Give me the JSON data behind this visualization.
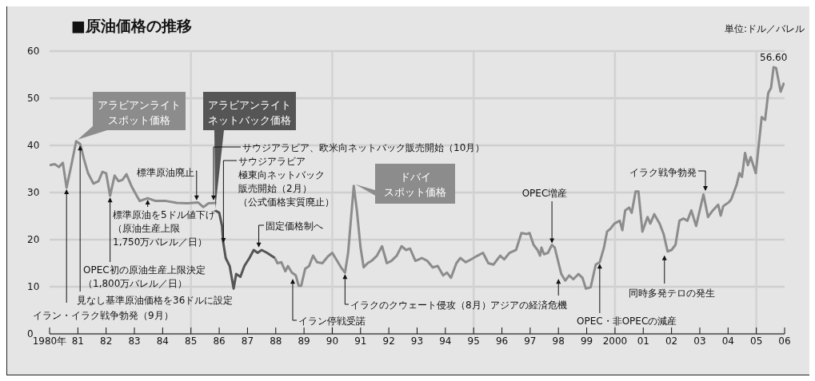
{
  "chart_data": {
    "type": "line",
    "title": "■原油価格の推移",
    "ylabel": "単位:ドル／バレル",
    "xlim": [
      1980,
      2006
    ],
    "xticks": [
      {
        "value": 1980,
        "label": "1980年"
      },
      {
        "value": 1981,
        "label": "81"
      },
      {
        "value": 1982,
        "label": "82"
      },
      {
        "value": 1983,
        "label": "83"
      },
      {
        "value": 1984,
        "label": "84"
      },
      {
        "value": 1985,
        "label": "85"
      },
      {
        "value": 1986,
        "label": "86"
      },
      {
        "value": 1987,
        "label": "87"
      },
      {
        "value": 1988,
        "label": "88"
      },
      {
        "value": 1989,
        "label": "89"
      },
      {
        "value": 1990,
        "label": "90"
      },
      {
        "value": 1991,
        "label": "91"
      },
      {
        "value": 1992,
        "label": "92"
      },
      {
        "value": 1993,
        "label": "93"
      },
      {
        "value": 1994,
        "label": "94"
      },
      {
        "value": 1995,
        "label": "95"
      },
      {
        "value": 1996,
        "label": "96"
      },
      {
        "value": 1997,
        "label": "97"
      },
      {
        "value": 1998,
        "label": "98"
      },
      {
        "value": 1999,
        "label": "99"
      },
      2000,
      {
        "value": 2001,
        "label": "01"
      },
      {
        "value": 2002,
        "label": "02"
      },
      {
        "value": 2003,
        "label": "03"
      },
      {
        "value": 2004,
        "label": "04"
      },
      {
        "value": 2005,
        "label": "05"
      },
      {
        "value": 2006,
        "label": "06"
      }
    ],
    "ylim": [
      0,
      60
    ],
    "yticks": [
      0,
      10,
      20,
      30,
      40,
      50,
      60
    ],
    "grid": "y",
    "marker": "none",
    "line_style": "solid",
    "legend": false,
    "ref_lines": [
      {
        "axis": "x",
        "value": 1985,
        "color": "#d2d2d2"
      },
      {
        "axis": "x",
        "value": 1990,
        "color": "#d2d2d2"
      },
      {
        "axis": "x",
        "value": 1995,
        "color": "#d2d2d2"
      },
      {
        "axis": "x",
        "value": 2000,
        "color": "#d2d2d2"
      },
      {
        "axis": "x",
        "value": 2005,
        "color": "#d2d2d2"
      }
    ],
    "series": [
      {
        "name": "アラビアンライトスポット価格",
        "color": "#8c8c8c",
        "x": [
          1980.0,
          1980.19,
          1980.33,
          1980.47,
          1980.6,
          1980.77,
          1980.94,
          1981.08,
          1981.22,
          1981.36,
          1981.55,
          1981.73,
          1981.87,
          1982.0,
          1982.14,
          1982.3,
          1982.44,
          1982.58,
          1982.72,
          1982.9,
          1983.1,
          1983.19,
          1983.47,
          1983.75,
          1984.12,
          1984.5,
          1984.87,
          1985.25,
          1985.44,
          1985.62,
          1985.9
        ],
        "values": [
          35.8,
          36.0,
          35.4,
          36.3,
          31.0,
          35.8,
          40.9,
          40.3,
          37.0,
          34.1,
          31.9,
          32.4,
          34.4,
          34.1,
          29.3,
          33.6,
          32.4,
          32.7,
          33.9,
          31.3,
          29.1,
          28.2,
          28.8,
          28.2,
          28.2,
          27.8,
          27.7,
          27.9,
          26.9,
          27.7,
          27.8
        ]
      },
      {
        "name": "アラビアンライトネットバック価格",
        "color": "#555555",
        "x": [
          1985.86,
          1986.0,
          1986.1,
          1986.14,
          1986.23,
          1986.37,
          1986.51,
          1986.6,
          1986.75,
          1986.89,
          1987.07,
          1987.22,
          1987.36,
          1987.5,
          1987.69,
          1987.97
        ],
        "values": [
          26.2,
          25.7,
          22.9,
          19.5,
          16.1,
          14.4,
          9.6,
          12.7,
          12.1,
          14.4,
          16.1,
          17.8,
          17.2,
          17.8,
          17.2,
          16.1
        ]
      },
      {
        "name": "ドバイスポット価格",
        "color": "#8c8c8c",
        "x": [
          1987.97,
          1988.06,
          1988.2,
          1988.34,
          1988.43,
          1988.57,
          1988.71,
          1988.81,
          1988.9,
          1989.04,
          1989.18,
          1989.32,
          1989.46,
          1989.65,
          1989.84,
          1990.0,
          1990.17,
          1990.31,
          1990.45,
          1990.56,
          1990.64,
          1990.76,
          1990.87,
          1991.0,
          1991.11,
          1991.25,
          1991.39,
          1991.58,
          1991.76,
          1991.93,
          1992.09,
          1992.28,
          1992.45,
          1992.61,
          1992.75,
          1992.94,
          1993.17,
          1993.36,
          1993.55,
          1993.73,
          1993.92,
          1994.06,
          1994.2,
          1994.39,
          1994.53,
          1994.72,
          1994.91,
          1995.14,
          1995.33,
          1995.52,
          1995.7,
          1995.94,
          1996.08,
          1996.27,
          1996.5,
          1996.69,
          1996.88,
          1996.98,
          1997.12,
          1997.26,
          1997.35,
          1997.4,
          1997.49,
          1997.63,
          1997.77,
          1997.87,
          1997.96,
          1998.1,
          1998.24,
          1998.38,
          1998.53,
          1998.71,
          1998.85,
          1998.97,
          1999.14,
          1999.32,
          1999.46,
          1999.61,
          1999.72,
          1999.84,
          1999.98,
          2000.17,
          2000.26,
          2000.36,
          2000.5,
          2000.59,
          2000.73,
          2000.83,
          2000.97,
          2001.15,
          2001.25,
          2001.39,
          2001.58,
          2001.72,
          2001.86,
          2002.0,
          2002.14,
          2002.28,
          2002.42,
          2002.56,
          2002.7,
          2002.87,
          2003.13,
          2003.29,
          2003.46,
          2003.65,
          2003.74,
          2003.83,
          2004.02,
          2004.11,
          2004.3,
          2004.4,
          2004.49,
          2004.6,
          2004.7,
          2004.8,
          2004.98,
          2005.07,
          2005.19,
          2005.31,
          2005.42,
          2005.52,
          2005.61,
          2005.7,
          2005.86,
          2005.98
        ],
        "values": [
          16.1,
          15.0,
          15.2,
          13.3,
          14.4,
          13.0,
          12.4,
          10.2,
          10.2,
          13.8,
          14.4,
          16.6,
          15.2,
          15.0,
          16.4,
          17.2,
          15.5,
          14.1,
          13.0,
          17.2,
          22.9,
          31.4,
          26.2,
          18.3,
          14.1,
          15.0,
          15.5,
          16.6,
          18.6,
          15.0,
          15.5,
          16.6,
          18.6,
          17.8,
          18.1,
          15.5,
          16.1,
          15.5,
          14.1,
          14.4,
          12.4,
          13.0,
          11.9,
          15.0,
          16.1,
          15.2,
          15.8,
          16.6,
          17.2,
          15.0,
          14.7,
          16.6,
          15.8,
          17.2,
          17.8,
          21.4,
          21.2,
          21.4,
          18.9,
          17.8,
          16.6,
          18.3,
          16.9,
          17.2,
          18.9,
          18.3,
          16.1,
          12.7,
          11.3,
          12.4,
          11.6,
          12.7,
          11.9,
          9.6,
          9.9,
          14.7,
          15.2,
          18.3,
          21.7,
          22.3,
          23.4,
          24.0,
          22.0,
          26.2,
          26.8,
          25.7,
          30.2,
          30.2,
          21.7,
          24.8,
          23.4,
          25.4,
          23.4,
          21.2,
          17.5,
          17.8,
          18.9,
          24.0,
          24.5,
          24.0,
          26.2,
          22.9,
          29.6,
          24.8,
          26.2,
          27.4,
          25.1,
          27.1,
          27.9,
          28.5,
          31.6,
          34.1,
          33.3,
          38.4,
          35.8,
          37.5,
          34.1,
          39.2,
          46.0,
          45.4,
          51.1,
          52.2,
          56.6,
          56.4,
          51.4,
          53.3
        ]
      }
    ],
    "annotations": [
      {
        "text": "イラン・イラク戦争勃発（9月）",
        "x": 1980.6,
        "y": 31
      },
      {
        "text": "見なし基準原油価格を36ドルに設定",
        "x": 1981.08,
        "y": 40.3
      },
      {
        "text": "OPEC初の原油生産上限決定（1,800万バレル／日）",
        "x": 1982.14,
        "y": 29.3
      },
      {
        "text": "標準原油を5ドル値下げ（原油生産上限1,750万バレル／日）",
        "x": 1983.47,
        "y": 28.8
      },
      {
        "text": "標準原油廃止",
        "x": 1985.2,
        "y": 28
      },
      {
        "text": "サウジアラビア、欧米向ネットバック販売開始（10月）",
        "x": 1985.8,
        "y": 28
      },
      {
        "text": "サウジアラビア極東向ネットバック販売開始（2月）（公式価格実質廃止）",
        "x": 1986.15,
        "y": 19
      },
      {
        "text": "固定価格制へ",
        "x": 1987.4,
        "y": 18
      },
      {
        "text": "イラン停戦受諾",
        "x": 1988.6,
        "y": 12
      },
      {
        "text": "イラクのクウェート侵攻（8月）",
        "x": 1990.45,
        "y": 13
      },
      {
        "text": "OPEC増産",
        "x": 1997.77,
        "y": 18.9
      },
      {
        "text": "アジアの経済危機",
        "x": 1998.0,
        "y": 12
      },
      {
        "text": "OPEC・非OPECの減産",
        "x": 1999.46,
        "y": 15.2
      },
      {
        "text": "同時多発テロの発生",
        "x": 2001.75,
        "y": 17
      },
      {
        "text": "イラク戦争勃発",
        "x": 2003.2,
        "y": 30
      },
      {
        "text": "56.60",
        "x": 2005.61,
        "y": 56.6
      }
    ]
  }
}
